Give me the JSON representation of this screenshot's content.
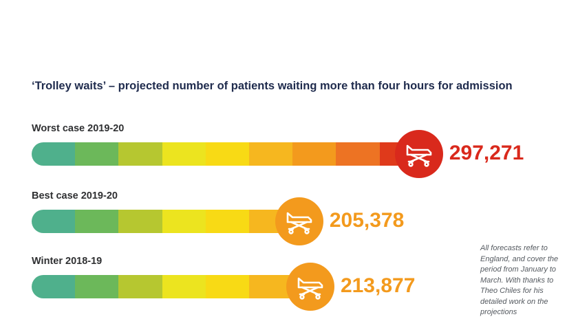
{
  "chart_data": {
    "type": "bar",
    "title": "‘Trolley waits’ – projected number of patients waiting more than four hours for admission",
    "series": [
      {
        "name": "Worst case 2019-20",
        "value": 297271,
        "label": "297,271",
        "color": "#d9291c"
      },
      {
        "name": "Best case 2019-20",
        "value": 205378,
        "label": "205,378",
        "color": "#f39a1d"
      },
      {
        "name": "Winter 2018-19",
        "value": 213877,
        "label": "213,877",
        "color": "#f39a1d"
      }
    ],
    "gradient_colors": [
      "#4fb08c",
      "#6cb85a",
      "#b6c730",
      "#ece41f",
      "#f8da15",
      "#f6b71f",
      "#f39a1d",
      "#ed7323",
      "#df3a1b"
    ],
    "xlim": [
      0,
      300000
    ]
  },
  "footnote": "All forecasts refer to England, and cover the period from January to March. With thanks to Theo Chiles for his detailed work on the projections",
  "icon": "hospital-trolley-icon"
}
